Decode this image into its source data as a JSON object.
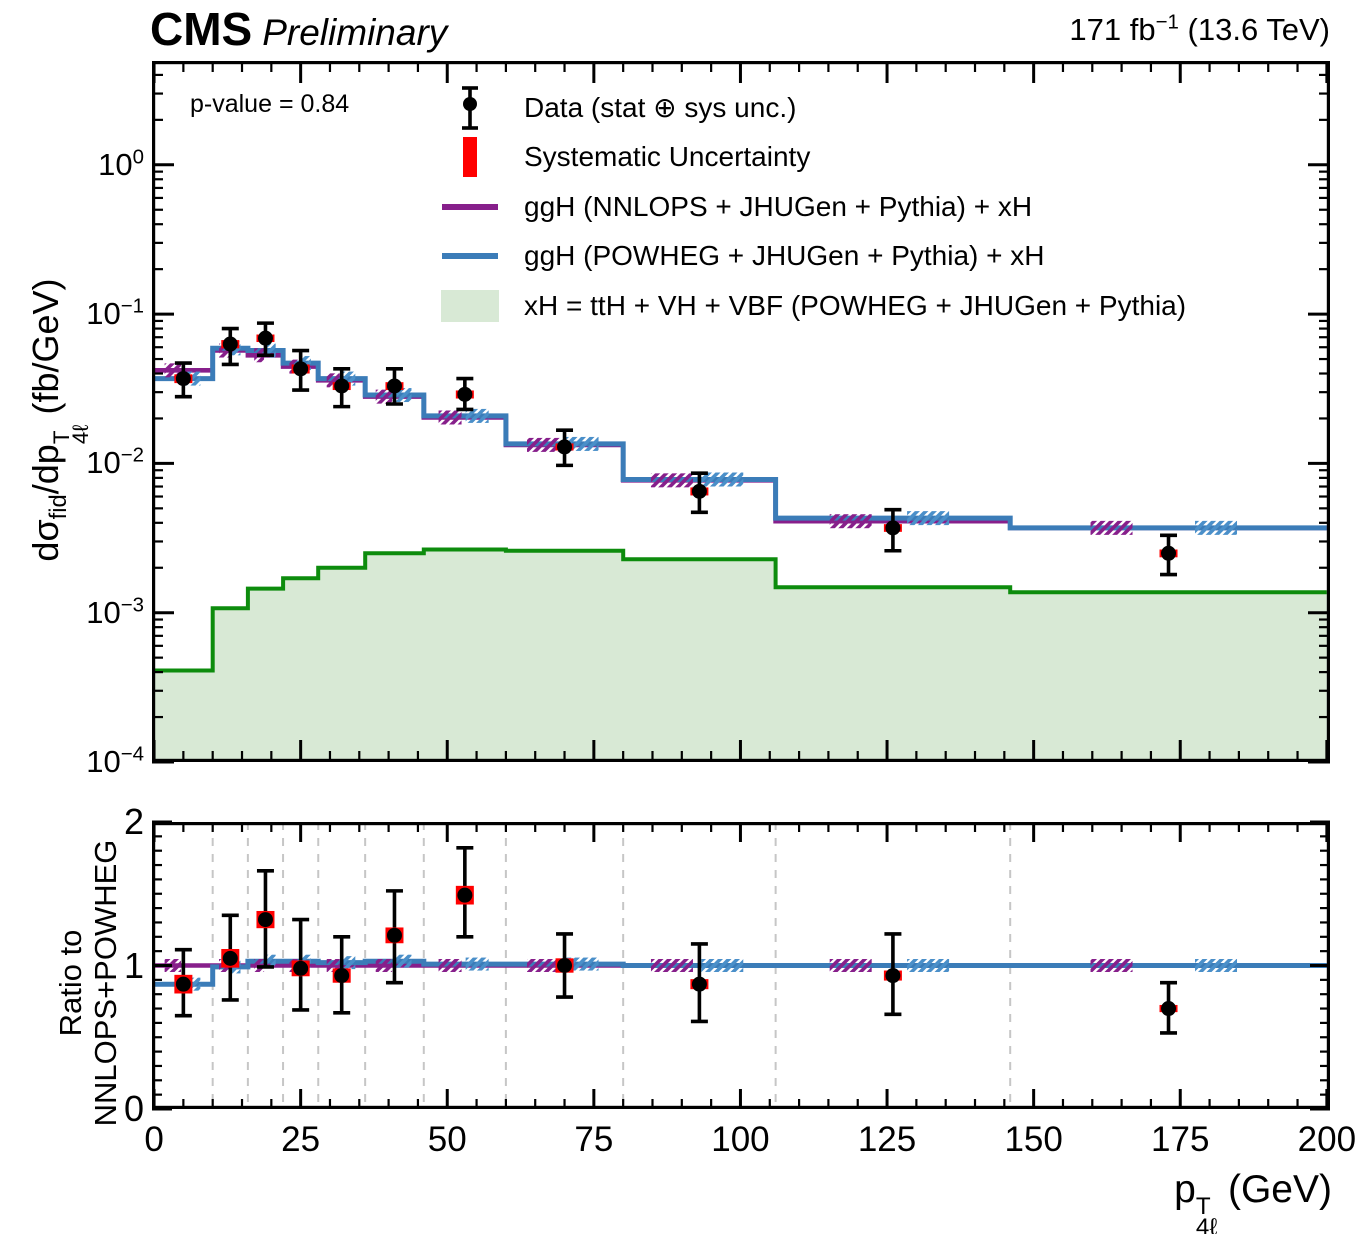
{
  "header": {
    "experiment": "CMS",
    "label": "Preliminary",
    "lumi_parts": [
      [
        "n",
        "171 fb"
      ],
      [
        "sup",
        "−1"
      ],
      [
        "n",
        " (13.6 TeV)"
      ]
    ]
  },
  "annotations": {
    "p_value": "p-value = 0.84"
  },
  "axes": {
    "ylabel_main_parts": [
      [
        "n",
        "dσ"
      ],
      [
        "sub",
        "fid"
      ],
      [
        "n",
        "/dp"
      ],
      [
        "stack",
        "T|4ℓ"
      ],
      [
        "n",
        " (fb/GeV)"
      ]
    ],
    "ratio_ylabel_lines": [
      "Ratio to",
      "NNLOPS+POWHEG"
    ],
    "xlabel_parts": [
      [
        "n",
        "p"
      ],
      [
        "stack",
        "T|4ℓ"
      ],
      [
        "n",
        " (GeV)"
      ]
    ]
  },
  "legend": {
    "items": [
      {
        "marker": "data-marker",
        "label": "Data (stat ⊕ sys unc.)"
      },
      {
        "marker": "sys-marker",
        "label": "Systematic Uncertainty"
      },
      {
        "marker": "nnlops-line-marker",
        "label": "ggH (NNLOPS + JHUGen + Pythia) + xH"
      },
      {
        "marker": "powheg-line-marker",
        "label": "ggH (POWHEG + JHUGen + Pythia) + xH"
      },
      {
        "marker": "xh-box-marker",
        "label": "xH = ttH + VH + VBF (POWHEG + JHUGen + Pythia)"
      }
    ]
  },
  "colors": {
    "nnlops_purple": "#871f8b",
    "powheg_blue": "#3b7cb8",
    "powheg_blue_hatch": "#4a8fc9",
    "xh_fill": "#d8e9d5",
    "xh_line": "#0d8c0d",
    "data_black": "#000000",
    "sys_red": "#ff0000",
    "grid_gray": "#c6c6c6"
  },
  "chart_data": {
    "type": "line",
    "title": "CMS Preliminary H->4l fiducial differential cross section vs pT(4l)",
    "xlabel": "pT_4l (GeV)",
    "ylabel_main": "dsigma_fid/dpT_4l (fb/GeV)",
    "ylabel_ratio": "Ratio to NNLOPS+POWHEG",
    "x_range": [
      0,
      200
    ],
    "ylim_main_log": [
      0.0001,
      4.9
    ],
    "ylim_ratio": [
      0,
      2
    ],
    "x_ticks": [
      0,
      25,
      50,
      75,
      100,
      125,
      150,
      175,
      200
    ],
    "y_tick_exponents": [
      0,
      -1,
      -2,
      -3,
      -4
    ],
    "ratio_y_ticks": [
      2,
      1,
      0
    ],
    "bin_edges": [
      0,
      10,
      16,
      22,
      28,
      36,
      46,
      60,
      80,
      106,
      146,
      200
    ],
    "bin_centers": [
      5,
      13,
      19,
      25,
      32,
      41,
      53,
      70,
      93,
      126,
      173
    ],
    "series": {
      "nnlops": [
        0.042,
        0.057,
        0.053,
        0.0445,
        0.036,
        0.028,
        0.0203,
        0.0133,
        0.0077,
        0.0041,
        0.0037
      ],
      "powheg": [
        0.037,
        0.059,
        0.057,
        0.047,
        0.037,
        0.0287,
        0.0208,
        0.0135,
        0.0078,
        0.0043,
        0.0037
      ],
      "xh": [
        0.00041,
        0.00107,
        0.00145,
        0.0017,
        0.002,
        0.0025,
        0.00265,
        0.0026,
        0.00228,
        0.00148,
        0.00137
      ]
    },
    "data_points": {
      "y": [
        0.037,
        0.063,
        0.069,
        0.043,
        0.033,
        0.033,
        0.029,
        0.0129,
        0.0065,
        0.0037,
        0.0025
      ],
      "stat_hi": [
        0.01,
        0.017,
        0.018,
        0.014,
        0.01,
        0.01,
        0.008,
        0.0038,
        0.0021,
        0.0012,
        0.0008
      ],
      "stat_lo": [
        0.009,
        0.017,
        0.016,
        0.012,
        0.009,
        0.008,
        0.006,
        0.0032,
        0.0018,
        0.0011,
        0.0007
      ],
      "sys": [
        0.0025,
        0.004,
        0.004,
        0.003,
        0.002,
        0.002,
        0.0018,
        0.0007,
        0.0004,
        0.00022,
        0.00015
      ]
    },
    "ratio": {
      "data": [
        0.87,
        1.05,
        1.32,
        0.98,
        0.93,
        1.21,
        1.49,
        1.0,
        0.87,
        0.93,
        0.7
      ],
      "stat_hi": [
        0.24,
        0.3,
        0.34,
        0.34,
        0.27,
        0.31,
        0.33,
        0.22,
        0.28,
        0.29,
        0.18
      ],
      "stat_lo": [
        0.22,
        0.29,
        0.33,
        0.29,
        0.26,
        0.33,
        0.29,
        0.22,
        0.26,
        0.27,
        0.17
      ],
      "sys": [
        0.065,
        0.065,
        0.06,
        0.055,
        0.05,
        0.055,
        0.065,
        0.05,
        0.035,
        0.035,
        0.025
      ],
      "powheg_line": [
        0.87,
        0.99,
        1.03,
        1.03,
        1.02,
        1.03,
        1.01,
        1.01,
        1.0,
        1.0,
        1.0
      ],
      "nnlops_line": 1.0,
      "band_half": 0.045
    }
  }
}
